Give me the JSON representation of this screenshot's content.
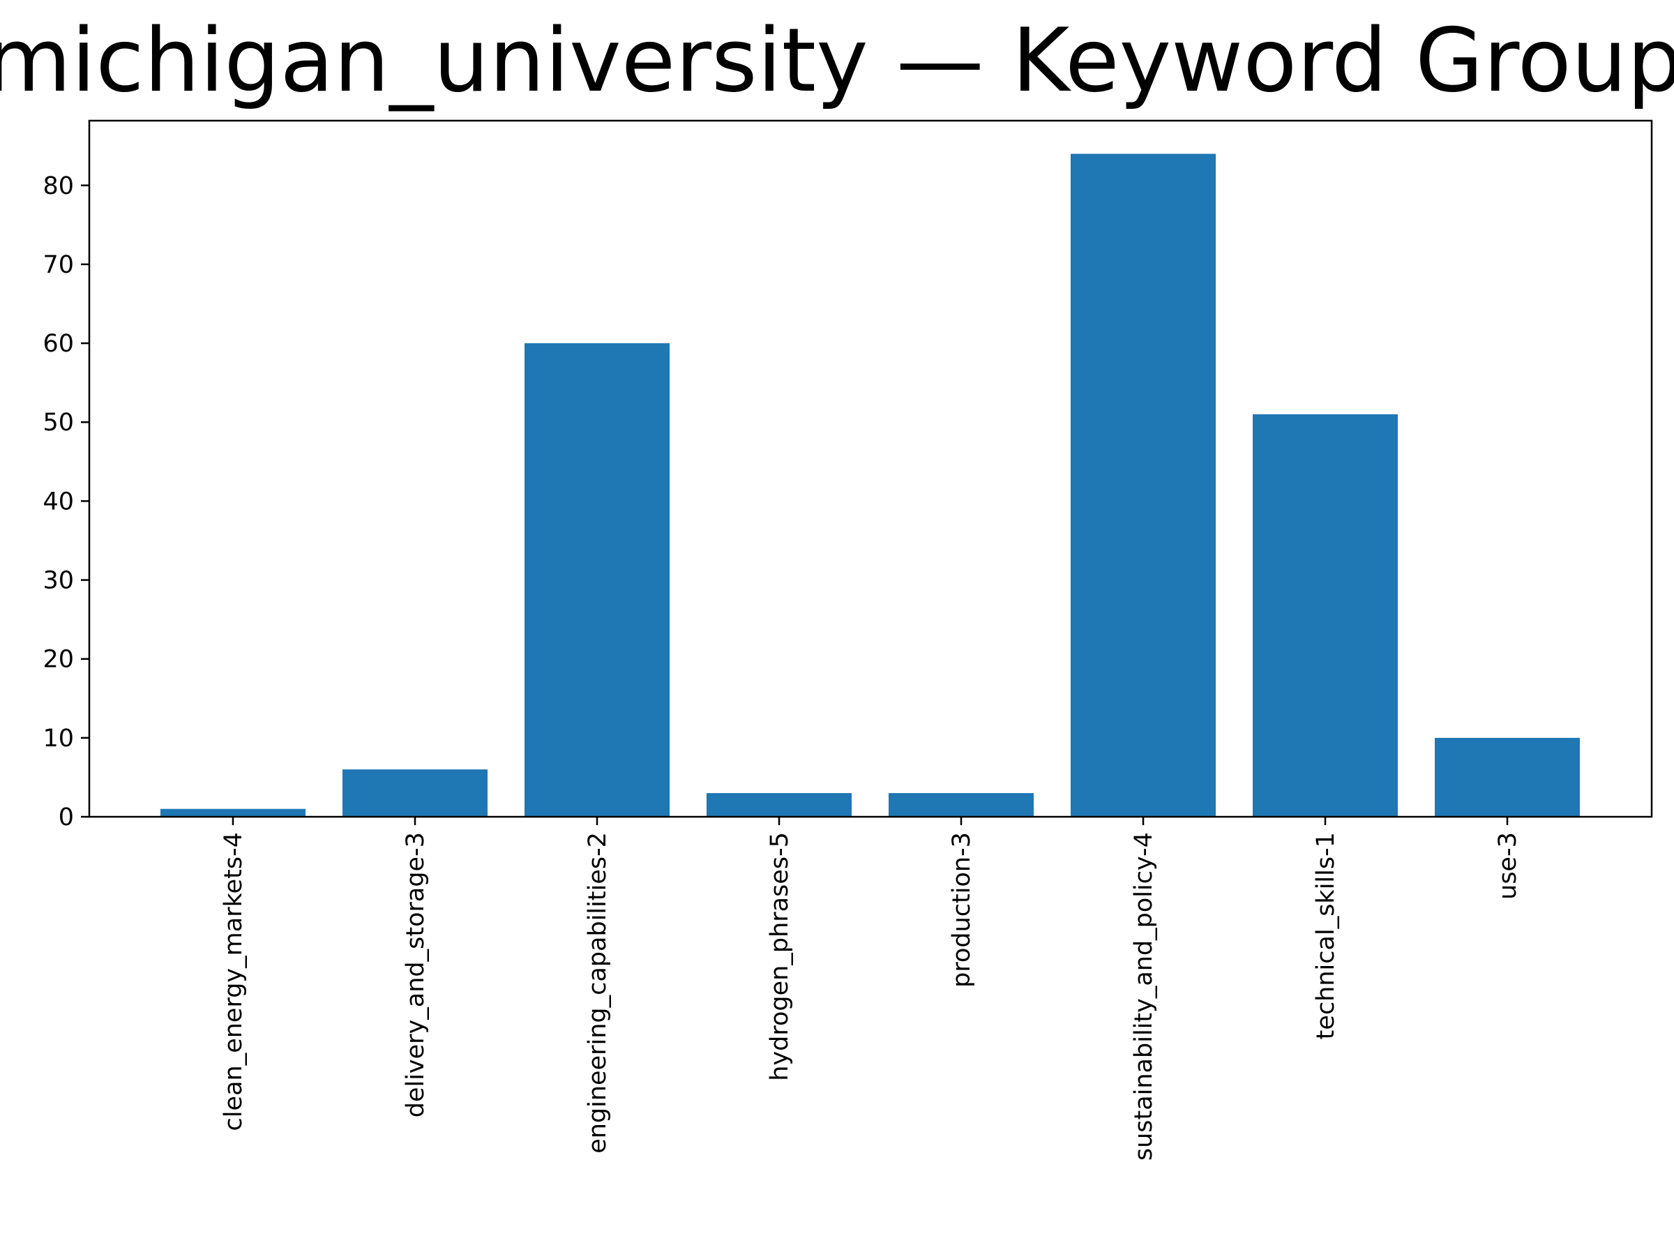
{
  "chart_data": {
    "type": "bar",
    "title": "michigan_university — Keyword Group",
    "xlabel": "",
    "ylabel": "",
    "categories": [
      "clean_energy_markets-4",
      "delivery_and_storage-3",
      "engineering_capabilities-2",
      "hydrogen_phrases-5",
      "production-3",
      "sustainability_and_policy-4",
      "technical_skills-1",
      "use-3"
    ],
    "values": [
      1,
      6,
      60,
      3,
      3,
      84,
      51,
      10
    ],
    "ylim": [
      0,
      88.2
    ],
    "yticks": [
      0,
      10,
      20,
      30,
      40,
      50,
      60,
      70,
      80
    ],
    "bar_color": "#1f77b4",
    "grid": false,
    "legend": "none"
  }
}
